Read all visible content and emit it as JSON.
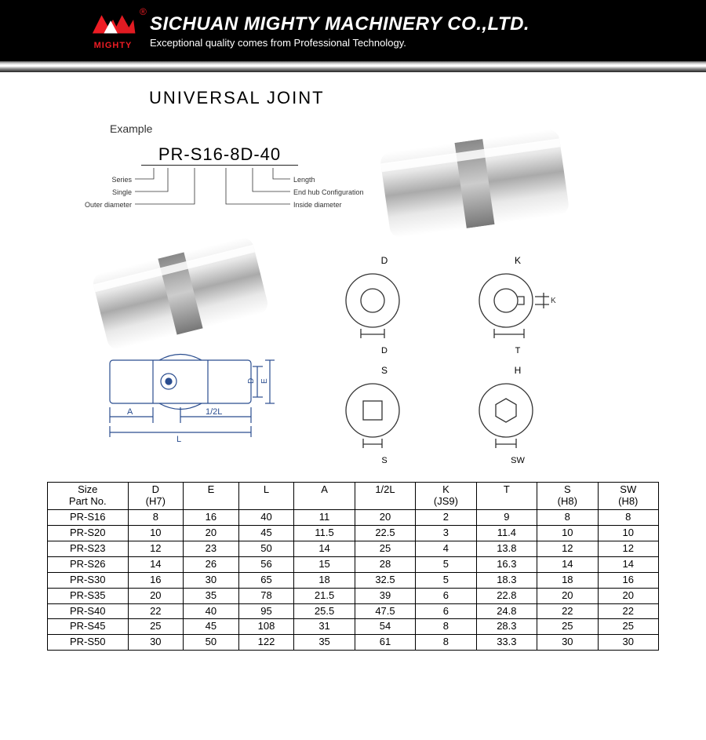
{
  "header": {
    "logo_text": "MIGHTY",
    "logo_color": "#ed1c24",
    "company_name": "SICHUAN MIGHTY MACHINERY CO.,LTD.",
    "tagline": "Exceptional quality comes from Professional Technology.",
    "bg_color": "#000000",
    "text_color": "#ffffff",
    "reg_mark": "®"
  },
  "content": {
    "title": "UNIVERSAL  JOINT",
    "example_label": "Example",
    "part_code": "PR-S16-8D-40",
    "code_annotations": {
      "left": [
        "Series",
        "Single",
        "Outer diameter"
      ],
      "right": [
        "Length",
        "End hub Configuration",
        "Inside diameter"
      ]
    },
    "hole_types": [
      {
        "top": "D",
        "bottom": "D",
        "shape": "circle"
      },
      {
        "top": "K",
        "bottom": "T",
        "shape": "keyway",
        "side": "K"
      },
      {
        "top": "S",
        "bottom": "S",
        "shape": "square"
      },
      {
        "top": "H",
        "bottom": "SW",
        "shape": "hex"
      }
    ],
    "tech_labels": {
      "A": "A",
      "halfL": "1/2L",
      "L": "L",
      "D": "D",
      "E": "E"
    }
  },
  "table": {
    "columns": [
      {
        "l1": "Size",
        "l2": "Part No."
      },
      {
        "l1": "D",
        "l2": "(H7)"
      },
      {
        "l1": "E",
        "l2": ""
      },
      {
        "l1": "L",
        "l2": ""
      },
      {
        "l1": "A",
        "l2": ""
      },
      {
        "l1": "1/2L",
        "l2": ""
      },
      {
        "l1": "K",
        "l2": "(JS9)"
      },
      {
        "l1": "T",
        "l2": ""
      },
      {
        "l1": "S",
        "l2": "(H8)"
      },
      {
        "l1": "SW",
        "l2": "(H8)"
      }
    ],
    "rows": [
      [
        "PR-S16",
        "8",
        "16",
        "40",
        "11",
        "20",
        "2",
        "9",
        "8",
        "8"
      ],
      [
        "PR-S20",
        "10",
        "20",
        "45",
        "11.5",
        "22.5",
        "3",
        "11.4",
        "10",
        "10"
      ],
      [
        "PR-S23",
        "12",
        "23",
        "50",
        "14",
        "25",
        "4",
        "13.8",
        "12",
        "12"
      ],
      [
        "PR-S26",
        "14",
        "26",
        "56",
        "15",
        "28",
        "5",
        "16.3",
        "14",
        "14"
      ],
      [
        "PR-S30",
        "16",
        "30",
        "65",
        "18",
        "32.5",
        "5",
        "18.3",
        "18",
        "16"
      ],
      [
        "PR-S35",
        "20",
        "35",
        "78",
        "21.5",
        "39",
        "6",
        "22.8",
        "20",
        "20"
      ],
      [
        "PR-S40",
        "22",
        "40",
        "95",
        "25.5",
        "47.5",
        "6",
        "24.8",
        "22",
        "22"
      ],
      [
        "PR-S45",
        "25",
        "45",
        "108",
        "31",
        "54",
        "8",
        "28.3",
        "25",
        "25"
      ],
      [
        "PR-S50",
        "30",
        "50",
        "122",
        "35",
        "61",
        "8",
        "33.3",
        "30",
        "30"
      ]
    ],
    "col_widths": [
      "90px",
      "62px",
      "62px",
      "62px",
      "68px",
      "68px",
      "68px",
      "68px",
      "68px",
      "68px"
    ],
    "border_color": "#000000",
    "font_size": 13
  }
}
